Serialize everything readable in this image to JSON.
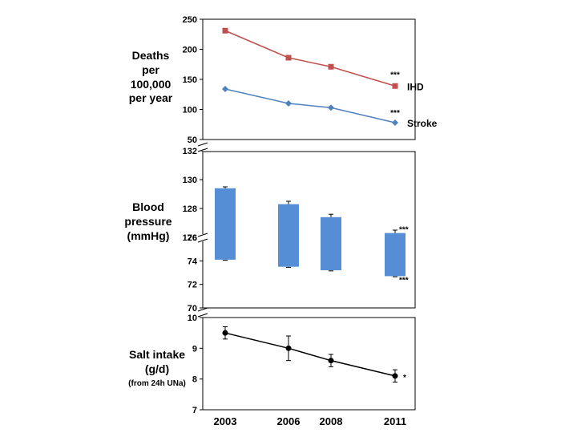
{
  "chart_data": [
    {
      "type": "line",
      "ylabel_lines": [
        "Deaths",
        "per",
        "100,000",
        "per year"
      ],
      "x": [
        "2003",
        "2006",
        "2008",
        "2011"
      ],
      "ylim": [
        50,
        250
      ],
      "yticks": [
        "50",
        "100",
        "150",
        "200",
        "250"
      ],
      "series": [
        {
          "name": "IHD",
          "values": [
            231,
            186,
            171,
            139
          ],
          "color": "#c0504d",
          "marker": "square",
          "significance": "***"
        },
        {
          "name": "Stroke",
          "values": [
            134,
            110,
            103,
            78
          ],
          "color": "#4f81bd",
          "marker": "diamond",
          "significance": "***"
        }
      ],
      "grid": false
    },
    {
      "type": "bar",
      "ylabel_lines": [
        "Blood",
        "pressure",
        "(mmHg)"
      ],
      "x": [
        "2003",
        "2006",
        "2008",
        "2011"
      ],
      "axis_break": true,
      "upper_ylim": [
        126,
        132
      ],
      "upper_yticks": [
        "126",
        "128",
        "130",
        "132"
      ],
      "lower_ylim": [
        70,
        76
      ],
      "lower_yticks": [
        "70",
        "72",
        "74",
        "76"
      ],
      "systolic": {
        "values": [
          129.4,
          128.3,
          127.4,
          126.3
        ],
        "error": [
          0.1,
          0.2,
          0.2,
          0.2
        ],
        "significance": "***"
      },
      "diastolic": {
        "values": [
          74.1,
          73.5,
          73.2,
          72.7
        ],
        "error": [
          0.05,
          0.05,
          0.05,
          0.05
        ],
        "significance": "***"
      },
      "color": "#558ed5"
    },
    {
      "type": "line",
      "ylabel_lines": [
        "Salt intake",
        "(g/d)"
      ],
      "ylabel_note": "(from 24h UNa)",
      "x": [
        "2003",
        "2006",
        "2008",
        "2011"
      ],
      "ylim": [
        7,
        10
      ],
      "yticks": [
        "7",
        "8",
        "9",
        "10"
      ],
      "series": [
        {
          "values": [
            9.5,
            9.0,
            8.6,
            8.1
          ],
          "error": [
            0.2,
            0.4,
            0.2,
            0.2
          ],
          "color": "#000000",
          "marker": "circle",
          "significance": "*"
        }
      ],
      "grid": false
    }
  ]
}
